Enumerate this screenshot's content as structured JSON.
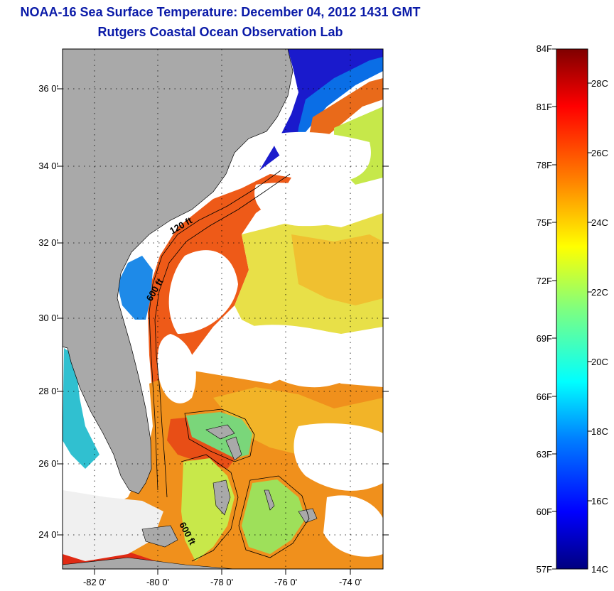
{
  "title": {
    "line1": "NOAA-16 Sea Surface Temperature:  December 04, 2012 1431 GMT",
    "line2": "Rutgers Coastal Ocean Observation Lab"
  },
  "map": {
    "lat_range": [
      23,
      37.1
    ],
    "lon_range": [
      -83,
      -73
    ],
    "lat_ticks": [
      "36 0'",
      "34 0'",
      "32 0'",
      "30 0'",
      "28 0'",
      "26 0'",
      "24 0'"
    ],
    "lon_ticks": [
      "-82 0'",
      "-80 0'",
      "-78 0'",
      "-76 0'",
      "-74 0'"
    ],
    "land_color": "#a9a9a9",
    "cloud_color": "#ffffff",
    "contour_labels": [
      "120 ft",
      "600 ft",
      "600 ft"
    ]
  },
  "colorbar": {
    "fahrenheit_labels": [
      "84F",
      "81F",
      "78F",
      "75F",
      "72F",
      "69F",
      "66F",
      "63F",
      "60F",
      "57F"
    ],
    "celsius_labels": [
      "28C",
      "26C",
      "24C",
      "22C",
      "20C",
      "18C",
      "16C",
      "14C"
    ],
    "colormap": "jet",
    "colors": [
      "#00007f",
      "#0000ff",
      "#007fff",
      "#00ffff",
      "#7fff7f",
      "#ffff00",
      "#ff7f00",
      "#ff0000",
      "#7f0000"
    ]
  }
}
